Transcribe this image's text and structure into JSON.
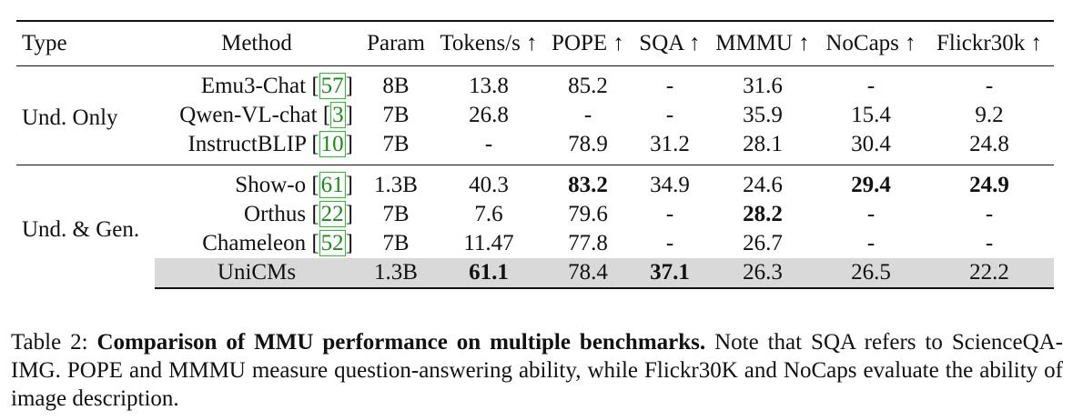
{
  "table": {
    "headers": [
      "Type",
      "Method",
      "Param",
      "Tokens/s ↑",
      "POPE ↑",
      "SQA ↑",
      "MMMU ↑",
      "NoCaps ↑",
      "Flickr30k ↑"
    ],
    "groups": [
      {
        "type": "Und. Only",
        "rows": [
          {
            "method": "Emu3-Chat",
            "cite": "57",
            "param": "8B",
            "tokens": "13.8",
            "pope": "85.2",
            "sqa": "-",
            "mmmu": "31.6",
            "nocaps": "-",
            "flickr": "-"
          },
          {
            "method": "Qwen-VL-chat",
            "cite": "3",
            "param": "7B",
            "tokens": "26.8",
            "pope": "-",
            "sqa": "-",
            "mmmu": "35.9",
            "nocaps": "15.4",
            "flickr": "9.2"
          },
          {
            "method": "InstructBLIP",
            "cite": "10",
            "param": "7B",
            "tokens": "-",
            "pope": "78.9",
            "sqa": "31.2",
            "mmmu": "28.1",
            "nocaps": "30.4",
            "flickr": "24.8"
          }
        ]
      },
      {
        "type": "Und. & Gen.",
        "rows": [
          {
            "method": "Show-o",
            "cite": "61",
            "param": "1.3B",
            "tokens": "40.3",
            "pope": "83.2",
            "sqa": "34.9",
            "mmmu": "24.6",
            "nocaps": "29.4",
            "flickr": "24.9"
          },
          {
            "method": "Orthus",
            "cite": "22",
            "param": "7B",
            "tokens": "7.6",
            "pope": "79.6",
            "sqa": "-",
            "mmmu": "28.2",
            "nocaps": "-",
            "flickr": "-"
          },
          {
            "method": "Chameleon",
            "cite": "52",
            "param": "7B",
            "tokens": "11.47",
            "pope": "77.8",
            "sqa": "-",
            "mmmu": "26.7",
            "nocaps": "-",
            "flickr": "-"
          },
          {
            "method": "UniCMs",
            "cite": "",
            "param": "1.3B",
            "tokens": "61.1",
            "pope": "78.4",
            "sqa": "37.1",
            "mmmu": "26.3",
            "nocaps": "26.5",
            "flickr": "22.2"
          }
        ]
      }
    ]
  },
  "caption": {
    "label": "Table 2: ",
    "bold": "Comparison of MMU performance on multiple benchmarks.",
    "text": "Note that SQA refers to ScienceQA-IMG. POPE and MMMU measure question-answering ability, while Flickr30K and NoCaps evaluate the ability of image description."
  }
}
